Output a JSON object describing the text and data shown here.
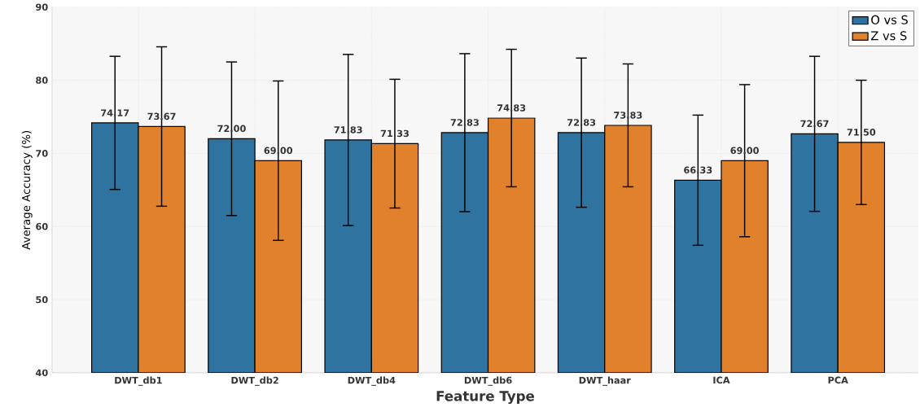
{
  "chart_data": {
    "type": "bar",
    "xlabel": "Feature Type",
    "ylabel": "Average Accuracy (%)",
    "categories": [
      "DWT_db1",
      "DWT_db2",
      "DWT_db4",
      "DWT_db6",
      "DWT_haar",
      "ICA",
      "PCA"
    ],
    "series": [
      {
        "name": "O vs S",
        "color": "#2f73a1",
        "values": [
          74.17,
          72.0,
          71.83,
          72.83,
          72.83,
          66.33,
          72.67
        ],
        "errors": [
          9.1,
          10.5,
          11.7,
          10.8,
          10.2,
          8.9,
          10.6
        ],
        "value_labels": [
          "74.17",
          "72.00",
          "71.83",
          "72.83",
          "72.83",
          "66.33",
          "72.67"
        ]
      },
      {
        "name": "Z vs S",
        "color": "#e1812c",
        "values": [
          73.67,
          69.0,
          71.33,
          74.83,
          73.83,
          69.0,
          71.5
        ],
        "errors": [
          10.9,
          10.9,
          8.8,
          9.4,
          8.4,
          10.4,
          8.5
        ],
        "value_labels": [
          "73.67",
          "69.00",
          "71.33",
          "74.83",
          "73.83",
          "69.00",
          "71.50"
        ]
      }
    ],
    "ylim": [
      40,
      90
    ],
    "yticks": [
      40,
      50,
      60,
      70,
      80,
      90
    ],
    "grid": true,
    "legend": "top right"
  }
}
